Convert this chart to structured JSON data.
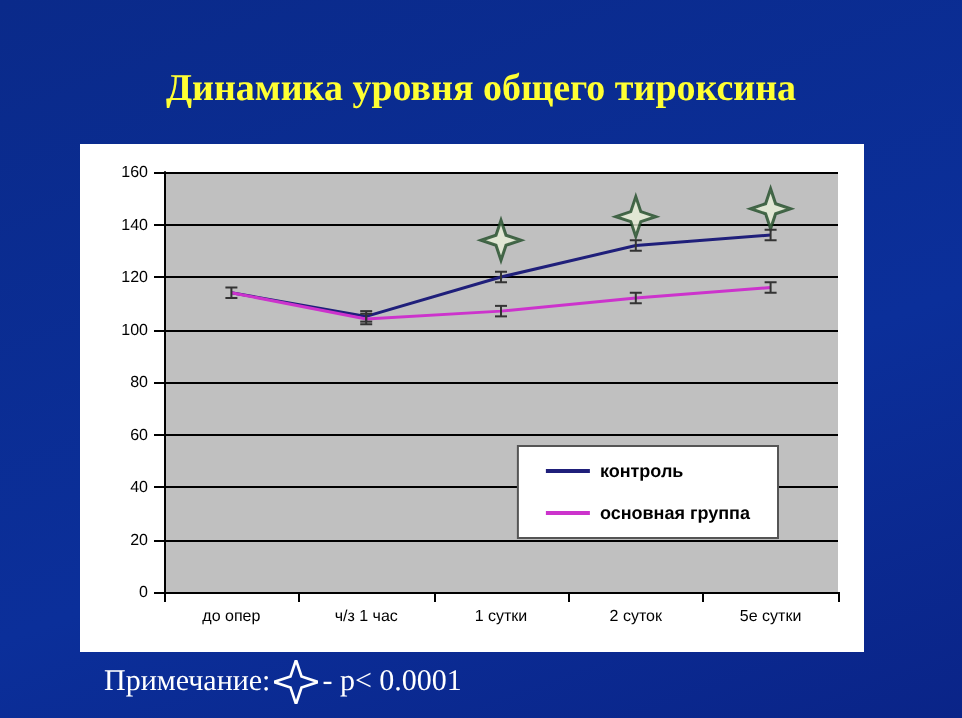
{
  "chart_data": {
    "type": "line",
    "title": "Динамика уровня общего тироксина",
    "categories": [
      "до опер",
      "ч/з 1 час",
      "1 сутки",
      "2 суток",
      "5е сутки"
    ],
    "series": [
      {
        "name": "контроль",
        "color": "#1f1f7a",
        "values": [
          114,
          105,
          120,
          132,
          136
        ],
        "errors": [
          2,
          2,
          2,
          2,
          2
        ]
      },
      {
        "name": "основная группа",
        "color": "#cc33cc",
        "values": [
          114,
          104,
          107,
          112,
          116
        ],
        "errors": [
          null,
          2,
          2,
          2,
          2
        ]
      },
      {
        "type": "scatter",
        "marker": "star",
        "color": "#1e4a26",
        "x": [
          "1 сутки",
          "2 суток",
          "5е сутки"
        ],
        "values": [
          134,
          143,
          146
        ]
      }
    ],
    "ylim": [
      0,
      160
    ],
    "yticks": [
      0,
      20,
      40,
      60,
      80,
      100,
      120,
      140,
      160
    ],
    "grid": "y",
    "legend": "bottom right",
    "marker": "none",
    "line_style": "solid",
    "annotations": [
      "Примечание:",
      "- p< 0.0001"
    ]
  }
}
